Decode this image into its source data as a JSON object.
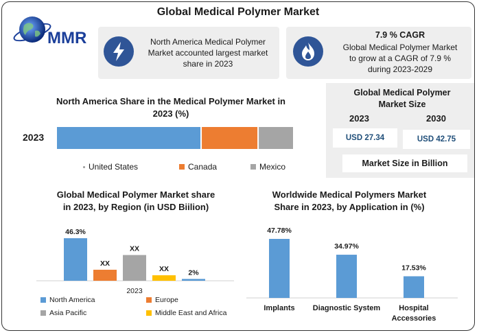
{
  "header": {
    "title": "Global Medical Polymer Market",
    "logo_text": "MMR"
  },
  "info_left": {
    "icon": "lightning-icon",
    "text_lines": [
      "North America Medical Polymer",
      "Market accounted largest market",
      "share in 2023"
    ]
  },
  "info_right": {
    "icon": "flame-icon",
    "heading": "7.9 % CAGR",
    "text_lines": [
      "Global Medical Polymer Market",
      "to grow at a CAGR of 7.9 %",
      "during 2023-2029"
    ]
  },
  "market_size": {
    "title_lines": [
      "Global Medical Polymer",
      "Market Size"
    ],
    "year_a": "2023",
    "year_b": "2030",
    "value_a": "USD 27.34",
    "value_b": "USD 42.75",
    "unit_label": "Market Size in Billion"
  },
  "colors": {
    "blue": "#5b9bd5",
    "orange": "#ed7d31",
    "gray": "#a5a5a5",
    "yellow": "#ffc000",
    "navy": "#2f5597"
  },
  "chart_data": [
    {
      "type": "bar",
      "stacked": true,
      "orientation": "horizontal",
      "title_lines": [
        "North America Share in the Medical Polymer Market in",
        "2023 (%)"
      ],
      "categories": [
        "2023"
      ],
      "series": [
        {
          "name": "United States",
          "values": [
            61
          ]
        },
        {
          "name": "Canada",
          "values": [
            24
          ]
        },
        {
          "name": "Mexico",
          "values": [
            15
          ]
        }
      ],
      "legend_position": "bottom"
    },
    {
      "type": "bar",
      "title_lines": [
        "Global Medical Polymer Market share",
        "in 2023, by Region (in USD Biilion)"
      ],
      "xlabel": "2023",
      "series": [
        {
          "name": "North America",
          "values": [
            46.3
          ],
          "label": "46.3%"
        },
        {
          "name": "Europe",
          "values": [
            12
          ],
          "label": "XX"
        },
        {
          "name": "Asia Pacific",
          "values": [
            28
          ],
          "label": "XX"
        },
        {
          "name": "Middle East and Africa",
          "values": [
            6
          ],
          "label": "XX"
        },
        {
          "name": "",
          "values": [
            2
          ],
          "label": "2%"
        }
      ],
      "legend_position": "bottom"
    },
    {
      "type": "bar",
      "title_lines": [
        "Worldwide Medical Polymers Market",
        "Share in 2023, by Application in (%)"
      ],
      "categories": [
        [
          "Implants"
        ],
        [
          "Diagnostic System"
        ],
        [
          "Hospital",
          "Accessories"
        ]
      ],
      "values": [
        47.78,
        34.97,
        17.53
      ],
      "labels": [
        "47.78%",
        "34.97%",
        "17.53%"
      ]
    }
  ]
}
